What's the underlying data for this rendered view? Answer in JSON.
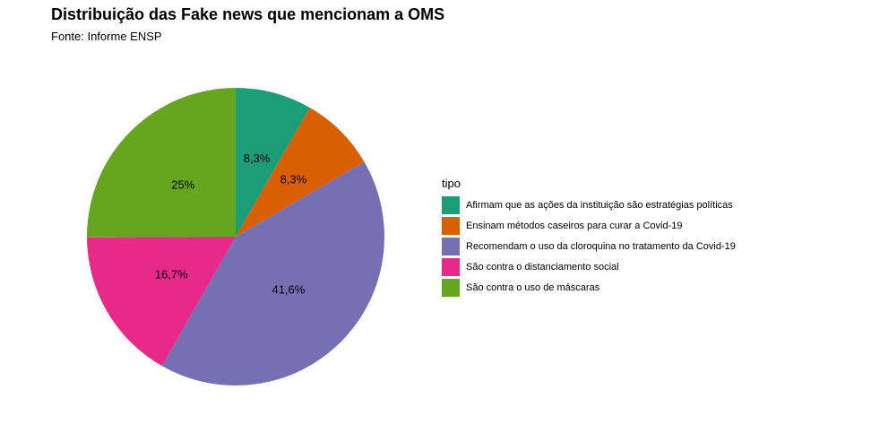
{
  "chart_data": {
    "type": "pie",
    "title": "Distribuição das Fake news que mencionam a OMS",
    "subtitle": "Fonte: Informe ENSP",
    "legend_title": "tipo",
    "legend_position": "right",
    "slices": [
      {
        "label": "Afirmam que as ações da instituição são estratégias políticas",
        "value": 8.3,
        "value_label": "8,3%",
        "color": "#1B9E77"
      },
      {
        "label": "Ensinam métodos caseiros para curar a Covid-19",
        "value": 8.3,
        "value_label": "8,3%",
        "color": "#D95F02"
      },
      {
        "label": "Recomendam o uso da cloroquina no tratamento da Covid-19",
        "value": 41.6,
        "value_label": "41,6%",
        "color": "#7570B3"
      },
      {
        "label": "São contra o distanciamento social",
        "value": 16.7,
        "value_label": "16,7%",
        "color": "#E7298A"
      },
      {
        "label": "São contra o uso de máscaras",
        "value": 25,
        "value_label": "25%",
        "color": "#66A61E"
      }
    ]
  }
}
